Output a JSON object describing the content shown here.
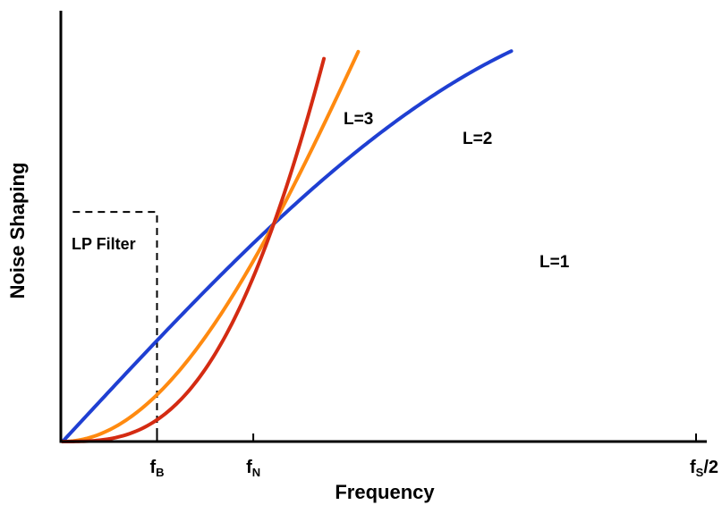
{
  "chart_data": {
    "type": "line",
    "xlabel": "Frequency",
    "ylabel": "Noise Shaping",
    "xlim": [
      0,
      1
    ],
    "ylim": [
      0,
      1
    ],
    "ticks": [
      {
        "x": 0.149,
        "main": "f",
        "sub": "B"
      },
      {
        "x": 0.301,
        "main": "f",
        "sub": "N"
      },
      {
        "x": 1.0,
        "main": "f",
        "sub": "S",
        "suffix": "/2"
      }
    ],
    "series": [
      {
        "name": "L=1",
        "order": 1,
        "gain": 0.493,
        "color": "#1f3fd2"
      },
      {
        "name": "L=2",
        "order": 2,
        "gain": 0.493,
        "color": "#ff8a10"
      },
      {
        "name": "L=3",
        "order": 3,
        "gain": 0.493,
        "color": "#d42b12"
      }
    ],
    "filter": {
      "name": "LP Filter",
      "cutoff": 0.149,
      "level": 0.52
    }
  }
}
